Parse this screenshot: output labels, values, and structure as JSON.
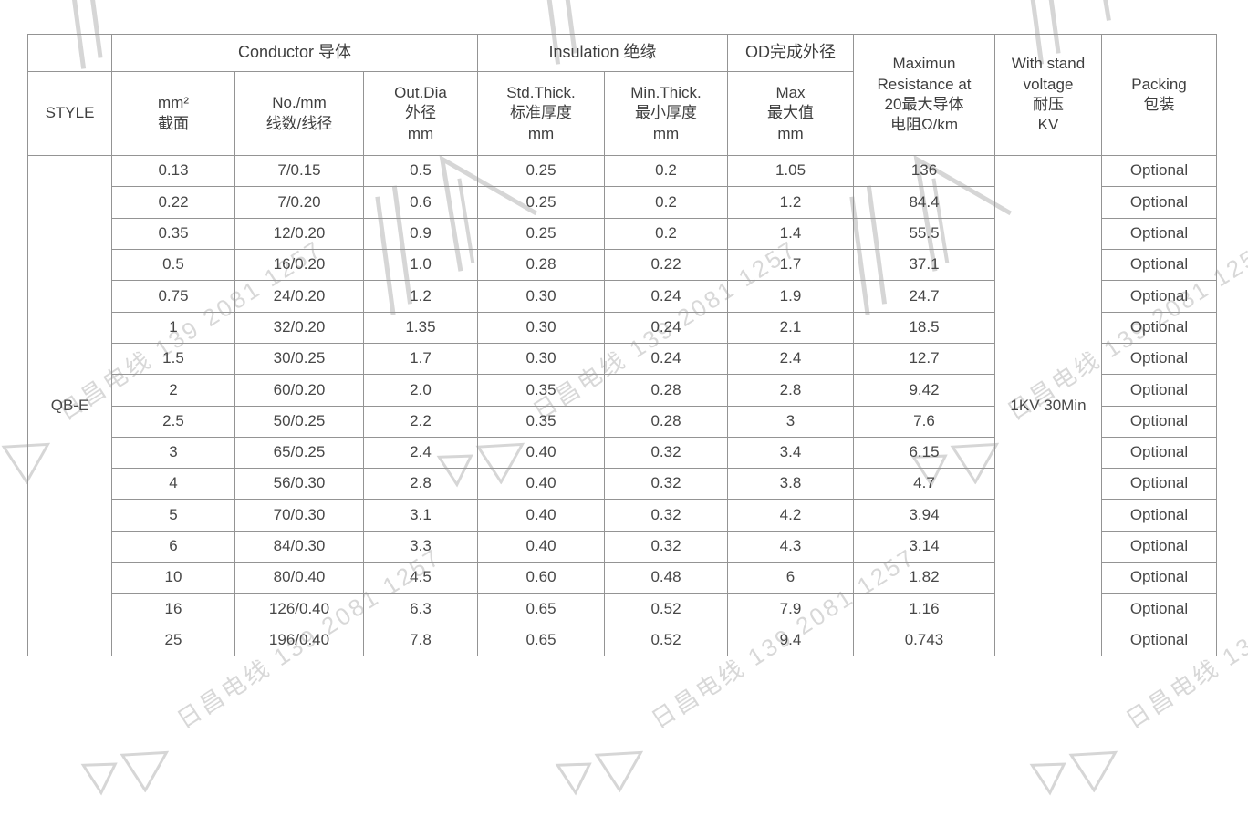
{
  "watermark": {
    "text": "日昌电线 139 2081 1257",
    "color": "#d8d8d8"
  },
  "colors": {
    "border": "#949494",
    "text": "#474747",
    "header_text": "#3e3e3e"
  },
  "table": {
    "header": {
      "style": "STYLE",
      "groups": {
        "conductor": "Conductor 导体",
        "insulation": "Insulation 绝缘",
        "od": "OD完成外径"
      },
      "cols": {
        "mm2": "mm²\n截面",
        "no_mm": "No./mm\n线数/线径",
        "out_dia": "Out.Dia\n外径\nmm",
        "std_thick": "Std.Thick.\n标准厚度\nmm",
        "min_thick": "Min.Thick.\n最小厚度\nmm",
        "max": "Max\n最大值\nmm",
        "resistance": "Maximun\nResistance at\n20最大导体\n电阻Ω/km",
        "withstand": "With stand\nvoltage\n耐压\nKV",
        "packing": "Packing\n包装"
      }
    },
    "style_value": "QB-E",
    "withstand_value": "1KV 30Min",
    "rows": [
      {
        "mm2": "0.13",
        "no_mm": "7/0.15",
        "out_dia": "0.5",
        "std": "0.25",
        "min": "0.2",
        "max": "1.05",
        "res": "136",
        "packing": "Optional"
      },
      {
        "mm2": "0.22",
        "no_mm": "7/0.20",
        "out_dia": "0.6",
        "std": "0.25",
        "min": "0.2",
        "max": "1.2",
        "res": "84.4",
        "packing": "Optional"
      },
      {
        "mm2": "0.35",
        "no_mm": "12/0.20",
        "out_dia": "0.9",
        "std": "0.25",
        "min": "0.2",
        "max": "1.4",
        "res": "55.5",
        "packing": "Optional"
      },
      {
        "mm2": "0.5",
        "no_mm": "16/0.20",
        "out_dia": "1.0",
        "std": "0.28",
        "min": "0.22",
        "max": "1.7",
        "res": "37.1",
        "packing": "Optional"
      },
      {
        "mm2": "0.75",
        "no_mm": "24/0.20",
        "out_dia": "1.2",
        "std": "0.30",
        "min": "0.24",
        "max": "1.9",
        "res": "24.7",
        "packing": "Optional"
      },
      {
        "mm2": "1",
        "no_mm": "32/0.20",
        "out_dia": "1.35",
        "std": "0.30",
        "min": "0.24",
        "max": "2.1",
        "res": "18.5",
        "packing": "Optional"
      },
      {
        "mm2": "1.5",
        "no_mm": "30/0.25",
        "out_dia": "1.7",
        "std": "0.30",
        "min": "0.24",
        "max": "2.4",
        "res": "12.7",
        "packing": "Optional"
      },
      {
        "mm2": "2",
        "no_mm": "60/0.20",
        "out_dia": "2.0",
        "std": "0.35",
        "min": "0.28",
        "max": "2.8",
        "res": "9.42",
        "packing": "Optional"
      },
      {
        "mm2": "2.5",
        "no_mm": "50/0.25",
        "out_dia": "2.2",
        "std": "0.35",
        "min": "0.28",
        "max": "3",
        "res": "7.6",
        "packing": "Optional"
      },
      {
        "mm2": "3",
        "no_mm": "65/0.25",
        "out_dia": "2.4",
        "std": "0.40",
        "min": "0.32",
        "max": "3.4",
        "res": "6.15",
        "packing": "Optional"
      },
      {
        "mm2": "4",
        "no_mm": "56/0.30",
        "out_dia": "2.8",
        "std": "0.40",
        "min": "0.32",
        "max": "3.8",
        "res": "4.7",
        "packing": "Optional"
      },
      {
        "mm2": "5",
        "no_mm": "70/0.30",
        "out_dia": "3.1",
        "std": "0.40",
        "min": "0.32",
        "max": "4.2",
        "res": "3.94",
        "packing": "Optional"
      },
      {
        "mm2": "6",
        "no_mm": "84/0.30",
        "out_dia": "3.3",
        "std": "0.40",
        "min": "0.32",
        "max": "4.3",
        "res": "3.14",
        "packing": "Optional"
      },
      {
        "mm2": "10",
        "no_mm": "80/0.40",
        "out_dia": "4.5",
        "std": "0.60",
        "min": "0.48",
        "max": "6",
        "res": "1.82",
        "packing": "Optional"
      },
      {
        "mm2": "16",
        "no_mm": "126/0.40",
        "out_dia": "6.3",
        "std": "0.65",
        "min": "0.52",
        "max": "7.9",
        "res": "1.16",
        "packing": "Optional"
      },
      {
        "mm2": "25",
        "no_mm": "196/0.40",
        "out_dia": "7.8",
        "std": "0.65",
        "min": "0.52",
        "max": "9.4",
        "res": "0.743",
        "packing": "Optional"
      }
    ]
  }
}
